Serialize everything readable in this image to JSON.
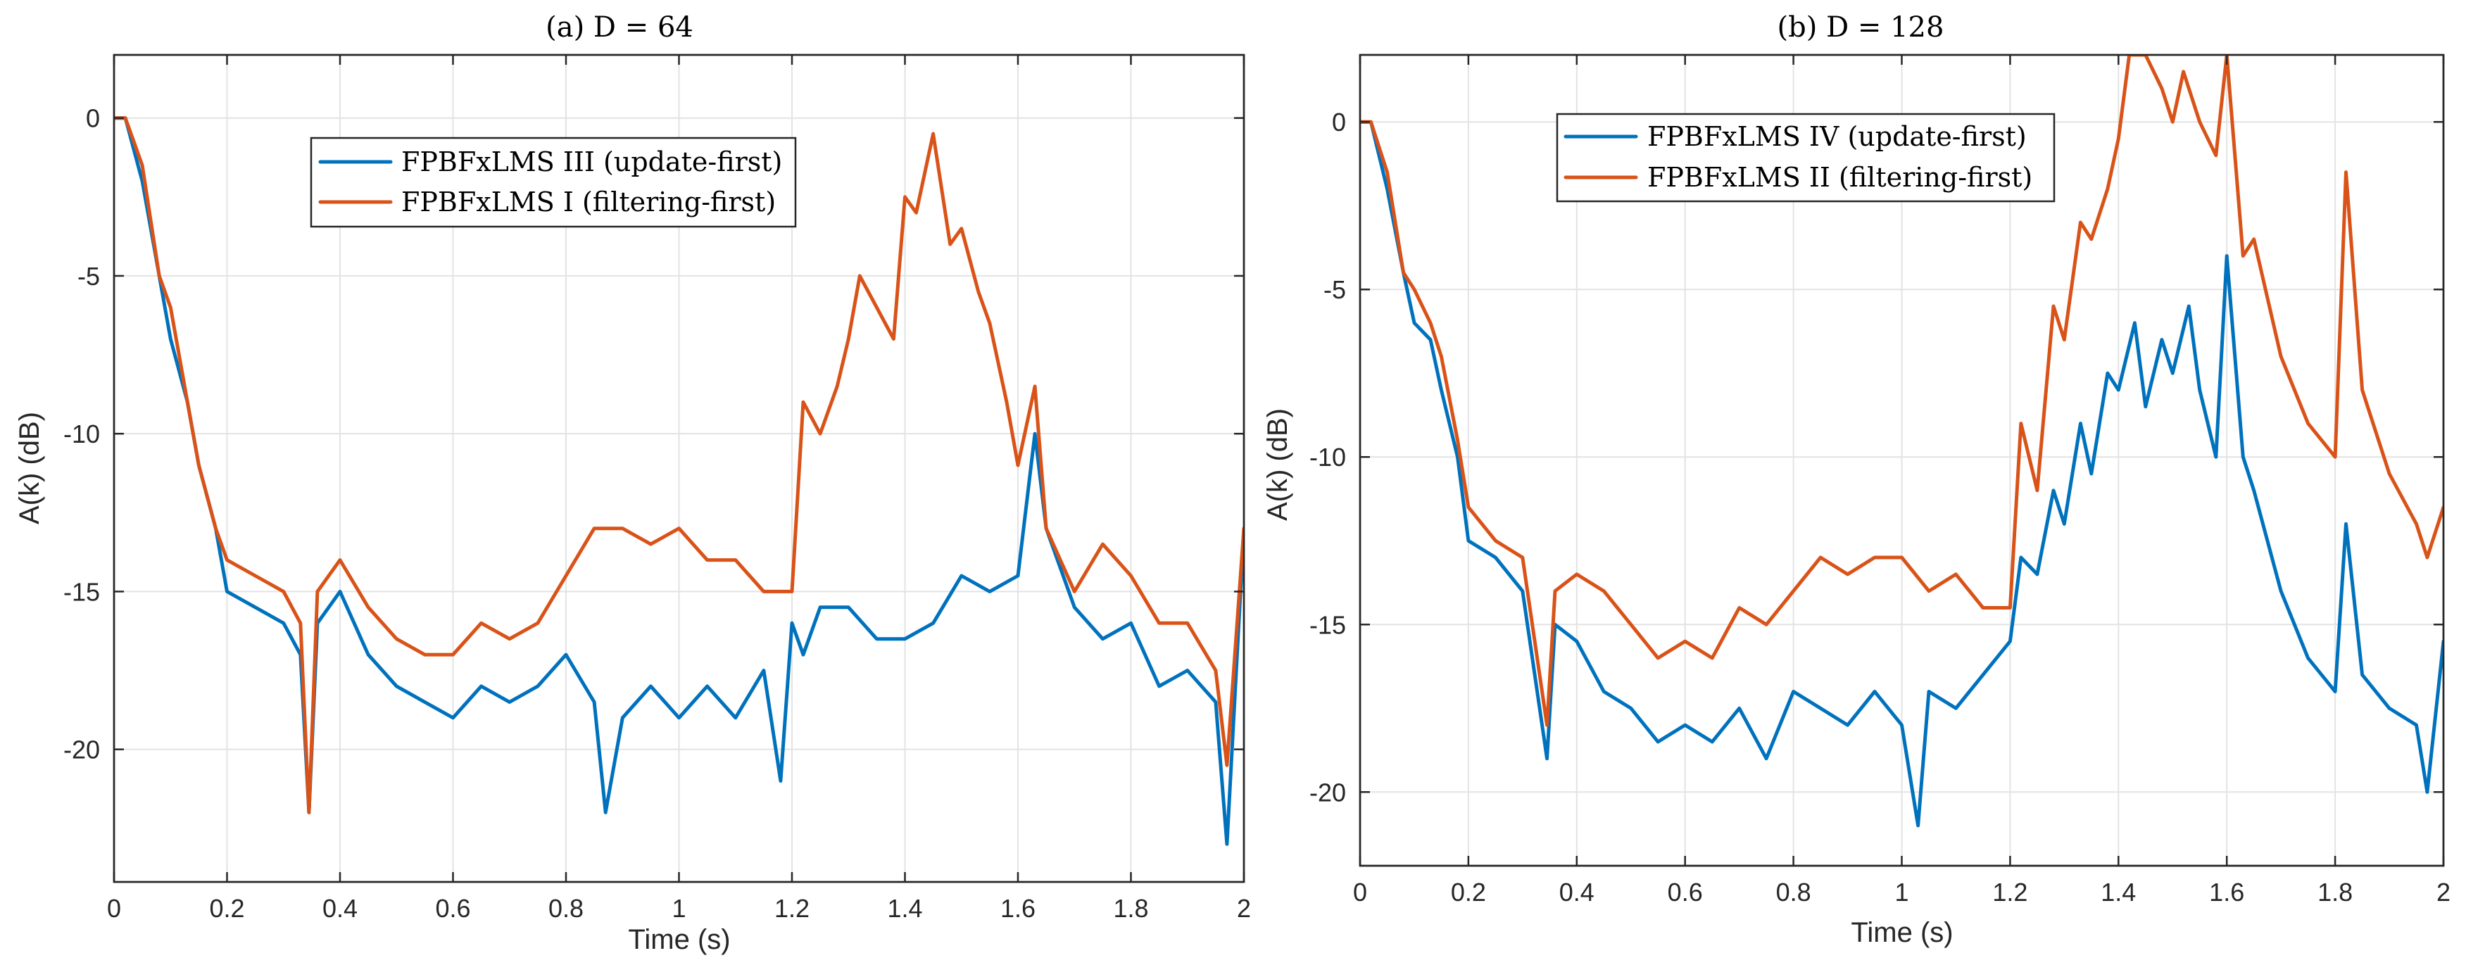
{
  "chart_data": [
    {
      "type": "line",
      "title": "(a) D = 64",
      "xlabel": "Time (s)",
      "ylabel": "A(k) (dB)",
      "xlim": [
        0,
        2
      ],
      "ylim": [
        -24.2,
        2
      ],
      "xticks": [
        0,
        0.2,
        0.4,
        0.6,
        0.8,
        1,
        1.2,
        1.4,
        1.6,
        1.8,
        2
      ],
      "xtick_labels": [
        "0",
        "0.2",
        "0.4",
        "0.6",
        "0.8",
        "1",
        "1.2",
        "1.4",
        "1.6",
        "1.8",
        "2"
      ],
      "yticks": [
        0,
        -5,
        -10,
        -15,
        -20
      ],
      "ytick_labels": [
        "0",
        "-5",
        "-10",
        "-15",
        "-20"
      ],
      "grid": true,
      "legend_position": "upper-center-left",
      "series": [
        {
          "name": "FPBFxLMS III (update-first)",
          "color": "#0072BD",
          "x": [
            0,
            0.02,
            0.05,
            0.08,
            0.1,
            0.13,
            0.15,
            0.18,
            0.2,
            0.25,
            0.3,
            0.33,
            0.345,
            0.36,
            0.4,
            0.45,
            0.5,
            0.55,
            0.6,
            0.65,
            0.7,
            0.75,
            0.8,
            0.85,
            0.87,
            0.9,
            0.95,
            1.0,
            1.05,
            1.1,
            1.15,
            1.18,
            1.2,
            1.22,
            1.25,
            1.3,
            1.35,
            1.4,
            1.45,
            1.5,
            1.55,
            1.6,
            1.63,
            1.65,
            1.7,
            1.75,
            1.8,
            1.85,
            1.9,
            1.95,
            1.97,
            2.0
          ],
          "y": [
            0,
            0,
            -2,
            -5,
            -7,
            -9,
            -11,
            -13,
            -15,
            -15.5,
            -16,
            -17,
            -22,
            -16,
            -15,
            -17,
            -18,
            -18.5,
            -19,
            -18,
            -18.5,
            -18,
            -17,
            -18.5,
            -22,
            -19,
            -18,
            -19,
            -18,
            -19,
            -17.5,
            -21,
            -16,
            -17,
            -15.5,
            -15.5,
            -16.5,
            -16.5,
            -16,
            -14.5,
            -15,
            -14.5,
            -10,
            -13,
            -15.5,
            -16.5,
            -16,
            -18,
            -17.5,
            -18.5,
            -23,
            -13
          ]
        },
        {
          "name": "FPBFxLMS I (filtering-first)",
          "color": "#D95319",
          "x": [
            0,
            0.02,
            0.05,
            0.08,
            0.1,
            0.13,
            0.15,
            0.18,
            0.2,
            0.25,
            0.3,
            0.33,
            0.345,
            0.36,
            0.4,
            0.45,
            0.5,
            0.55,
            0.6,
            0.65,
            0.7,
            0.75,
            0.8,
            0.85,
            0.9,
            0.95,
            1.0,
            1.05,
            1.1,
            1.15,
            1.2,
            1.22,
            1.25,
            1.28,
            1.3,
            1.32,
            1.35,
            1.38,
            1.4,
            1.42,
            1.45,
            1.48,
            1.5,
            1.53,
            1.55,
            1.58,
            1.6,
            1.63,
            1.65,
            1.7,
            1.75,
            1.8,
            1.85,
            1.9,
            1.95,
            1.97,
            2.0
          ],
          "y": [
            0,
            0,
            -1.5,
            -5,
            -6,
            -9,
            -11,
            -13,
            -14,
            -14.5,
            -15,
            -16,
            -22,
            -15,
            -14,
            -15.5,
            -16.5,
            -17,
            -17,
            -16,
            -16.5,
            -16,
            -14.5,
            -13,
            -13,
            -13.5,
            -13,
            -14,
            -14,
            -15,
            -15,
            -9,
            -10,
            -8.5,
            -7,
            -5,
            -6,
            -7,
            -2.5,
            -3,
            -0.5,
            -4,
            -3.5,
            -5.5,
            -6.5,
            -9,
            -11,
            -8.5,
            -13,
            -15,
            -13.5,
            -14.5,
            -16,
            -16,
            -17.5,
            -20.5,
            -13
          ]
        }
      ]
    },
    {
      "type": "line",
      "title": "(b) D = 128",
      "xlabel": "Time (s)",
      "ylabel": "A(k) (dB)",
      "xlim": [
        0,
        2
      ],
      "ylim": [
        -22.2,
        2
      ],
      "xticks": [
        0,
        0.2,
        0.4,
        0.6,
        0.8,
        1,
        1.2,
        1.4,
        1.6,
        1.8,
        2
      ],
      "xtick_labels": [
        "0",
        "0.2",
        "0.4",
        "0.6",
        "0.8",
        "1",
        "1.2",
        "1.4",
        "1.6",
        "1.8",
        "2"
      ],
      "yticks": [
        0,
        -5,
        -10,
        -15,
        -20
      ],
      "ytick_labels": [
        "0",
        "-5",
        "-10",
        "-15",
        "-20"
      ],
      "grid": true,
      "legend_position": "upper-center-left",
      "series": [
        {
          "name": "FPBFxLMS IV (update-first)",
          "color": "#0072BD",
          "x": [
            0,
            0.02,
            0.05,
            0.08,
            0.1,
            0.13,
            0.15,
            0.18,
            0.2,
            0.25,
            0.3,
            0.345,
            0.36,
            0.4,
            0.45,
            0.5,
            0.55,
            0.6,
            0.65,
            0.7,
            0.75,
            0.8,
            0.85,
            0.9,
            0.95,
            1.0,
            1.03,
            1.05,
            1.1,
            1.15,
            1.2,
            1.22,
            1.25,
            1.28,
            1.3,
            1.33,
            1.35,
            1.38,
            1.4,
            1.43,
            1.45,
            1.48,
            1.5,
            1.53,
            1.55,
            1.58,
            1.6,
            1.63,
            1.65,
            1.7,
            1.75,
            1.8,
            1.82,
            1.85,
            1.9,
            1.95,
            1.97,
            2.0
          ],
          "y": [
            0,
            0,
            -2,
            -4.5,
            -6,
            -6.5,
            -8,
            -10,
            -12.5,
            -13,
            -14,
            -19,
            -15,
            -15.5,
            -17,
            -17.5,
            -18.5,
            -18,
            -18.5,
            -17.5,
            -19,
            -17,
            -17.5,
            -18,
            -17,
            -18,
            -21,
            -17,
            -17.5,
            -16.5,
            -15.5,
            -13,
            -13.5,
            -11,
            -12,
            -9,
            -10.5,
            -7.5,
            -8,
            -6,
            -8.5,
            -6.5,
            -7.5,
            -5.5,
            -8,
            -10,
            -4,
            -10,
            -11,
            -14,
            -16,
            -17,
            -12,
            -16.5,
            -17.5,
            -18,
            -20,
            -15.5
          ]
        },
        {
          "name": "FPBFxLMS II (filtering-first)",
          "color": "#D95319",
          "x": [
            0,
            0.02,
            0.05,
            0.08,
            0.1,
            0.13,
            0.15,
            0.18,
            0.2,
            0.25,
            0.3,
            0.345,
            0.36,
            0.4,
            0.45,
            0.5,
            0.55,
            0.6,
            0.65,
            0.7,
            0.75,
            0.8,
            0.85,
            0.9,
            0.95,
            1.0,
            1.05,
            1.1,
            1.15,
            1.2,
            1.22,
            1.25,
            1.28,
            1.3,
            1.33,
            1.35,
            1.38,
            1.4,
            1.42,
            1.45,
            1.48,
            1.5,
            1.52,
            1.55,
            1.58,
            1.6,
            1.63,
            1.65,
            1.7,
            1.75,
            1.8,
            1.82,
            1.85,
            1.9,
            1.95,
            1.97,
            2.0
          ],
          "y": [
            0,
            0,
            -1.5,
            -4.5,
            -5,
            -6,
            -7,
            -9.5,
            -11.5,
            -12.5,
            -13,
            -18,
            -14,
            -13.5,
            -14,
            -15,
            -16,
            -15.5,
            -16,
            -14.5,
            -15,
            -14,
            -13,
            -13.5,
            -13,
            -13,
            -14,
            -13.5,
            -14.5,
            -14.5,
            -9,
            -11,
            -5.5,
            -6.5,
            -3,
            -3.5,
            -2,
            -0.5,
            2,
            2,
            1,
            0,
            1.5,
            0,
            -1,
            2,
            -4,
            -3.5,
            -7,
            -9,
            -10,
            -1.5,
            -8,
            -10.5,
            -12,
            -13,
            -11.5
          ]
        }
      ]
    }
  ]
}
